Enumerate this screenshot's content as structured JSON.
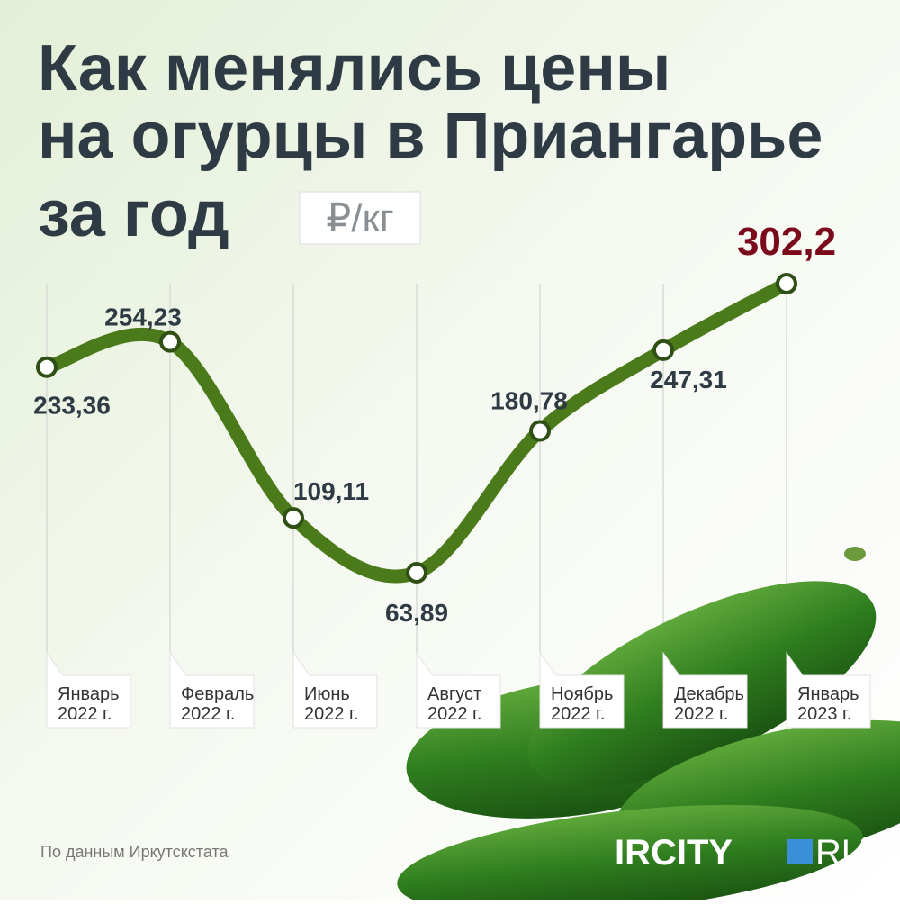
{
  "chart_data": {
    "type": "line",
    "title": [
      "Как менялись цены",
      "на огурцы в Приангарье",
      "за год"
    ],
    "unit": "₽/кг",
    "categories": [
      [
        "Январь",
        "2022 г."
      ],
      [
        "Февраль",
        "2022 г."
      ],
      [
        "Июнь",
        "2022 г."
      ],
      [
        "Август",
        "2022 г."
      ],
      [
        "Ноябрь",
        "2022 г."
      ],
      [
        "Декабрь",
        "2022 г."
      ],
      [
        "Январь",
        "2023 г."
      ]
    ],
    "series": [
      {
        "color": "#4a7a1a",
        "values": [
          233.36,
          254.23,
          109.11,
          63.89,
          180.78,
          247.31,
          302.2
        ],
        "value_labels": [
          "233,36",
          "254,23",
          "109,11",
          "63,89",
          "180,78",
          "247,31",
          "302,2"
        ]
      }
    ],
    "source": "По данным Иркутскстата",
    "logo": {
      "left": "IRCITY",
      "right": "RU"
    }
  }
}
